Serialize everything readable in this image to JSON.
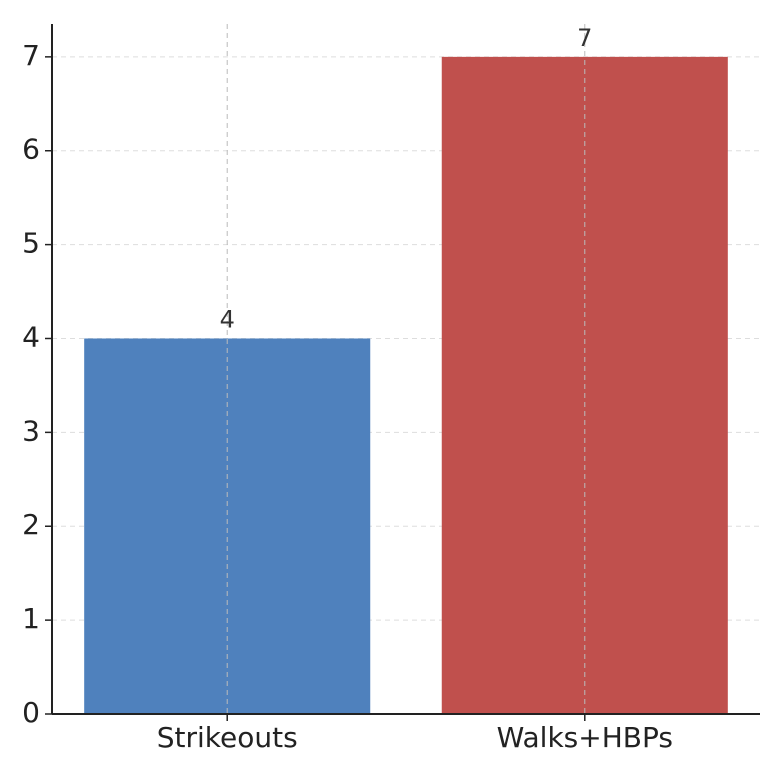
{
  "chart_data": {
    "type": "bar",
    "categories": [
      "Strikeouts",
      "Walks+HBPs"
    ],
    "values": [
      4,
      7
    ],
    "colors": [
      "#4f81bd",
      "#c0504d"
    ],
    "ylim": [
      0,
      7.35
    ],
    "yticks": [
      0,
      1,
      2,
      3,
      4,
      5,
      6,
      7
    ],
    "grid": true,
    "data_labels": true
  }
}
